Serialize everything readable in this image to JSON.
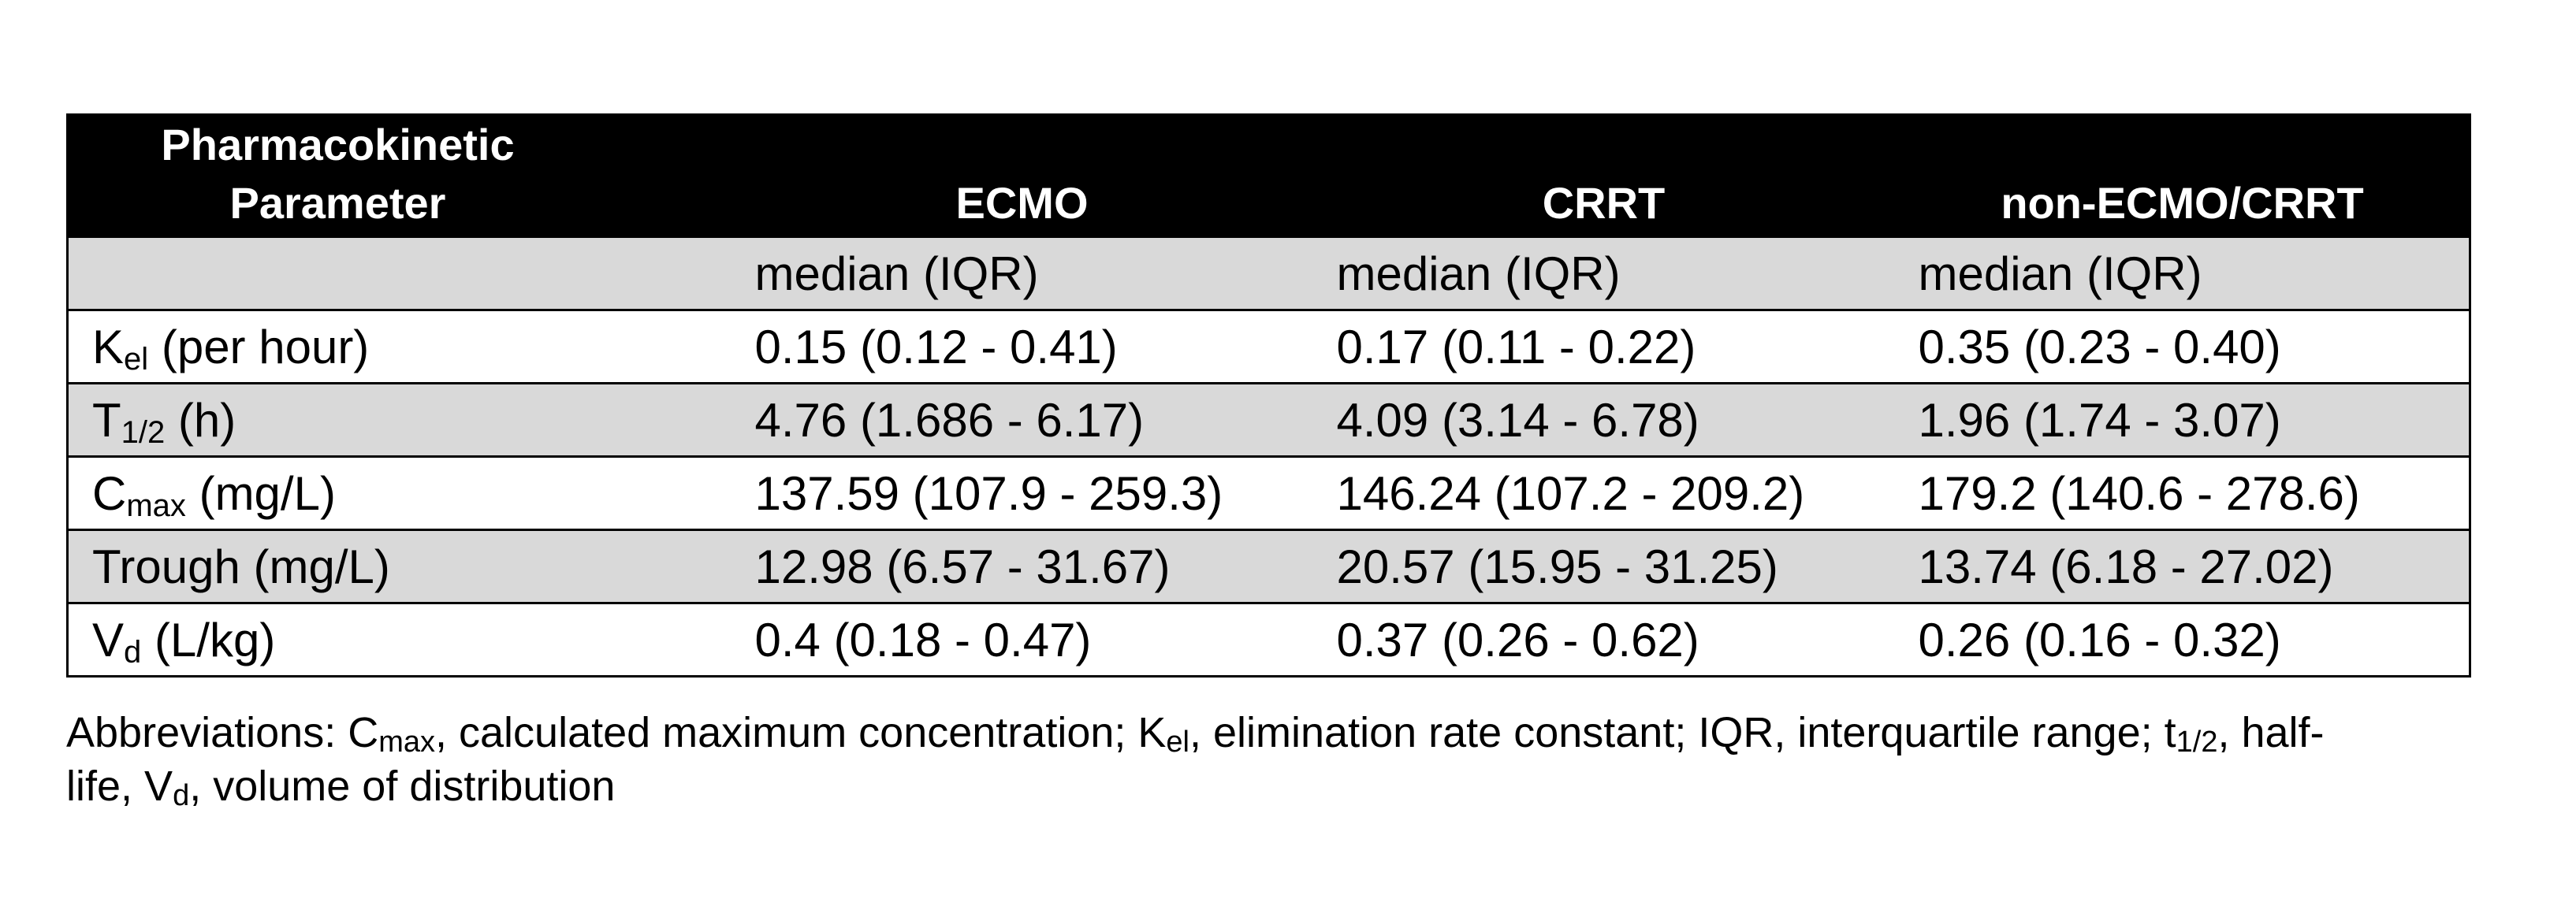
{
  "table": {
    "headers": {
      "param_line1": "Pharmacokinetic",
      "param_line2": "Parameter",
      "ecmo": "ECMO",
      "crrt": "CRRT",
      "non": "non-ECMO/CRRT"
    },
    "subheader": {
      "param": "",
      "ecmo": "median (IQR)",
      "crrt": "median (IQR)",
      "non": "median (IQR)"
    },
    "rows": [
      {
        "symbol": "K",
        "sub": "el",
        "unit": " (per hour)",
        "ecmo": "0.15 (0.12 - 0.41)",
        "crrt": "0.17 (0.11 - 0.22)",
        "non": "0.35 (0.23 - 0.40)"
      },
      {
        "symbol": "T",
        "sub": "1/2",
        "unit": " (h)",
        "ecmo": "4.76 (1.686 - 6.17)",
        "crrt": "4.09 (3.14 - 6.78)",
        "non": "1.96 (1.74 - 3.07)"
      },
      {
        "symbol": "C",
        "sub": "max",
        "unit": " (mg/L)",
        "ecmo": "137.59 (107.9 - 259.3)",
        "crrt": "146.24 (107.2 - 209.2)",
        "non": "179.2 (140.6 - 278.6)"
      },
      {
        "symbol": "Trough (mg/L)",
        "sub": "",
        "unit": "",
        "ecmo": "12.98 (6.57 - 31.67)",
        "crrt": "20.57 (15.95 - 31.25)",
        "non": "13.74 (6.18 - 27.02)"
      },
      {
        "symbol": "V",
        "sub": "d",
        "unit": " (L/kg)",
        "ecmo": "0.4 (0.18 - 0.47)",
        "crrt": "0.37 (0.26 - 0.62)",
        "non": "0.26 (0.16 - 0.32)"
      }
    ]
  },
  "footnote": {
    "p1": "Abbreviations: C",
    "s1": "max",
    "p2": ", calculated maximum concentration; K",
    "s2": "el",
    "p3": ", elimination rate constant; IQR, interquartile range; t",
    "s3": "1/2",
    "p4": ", half-",
    "p5": "life, V",
    "s4": "d",
    "p6": ", volume of distribution"
  },
  "colors": {
    "header_bg": "#000000",
    "header_text": "#ffffff",
    "shaded_row": "#d9d9d9",
    "plain_row": "#ffffff"
  }
}
